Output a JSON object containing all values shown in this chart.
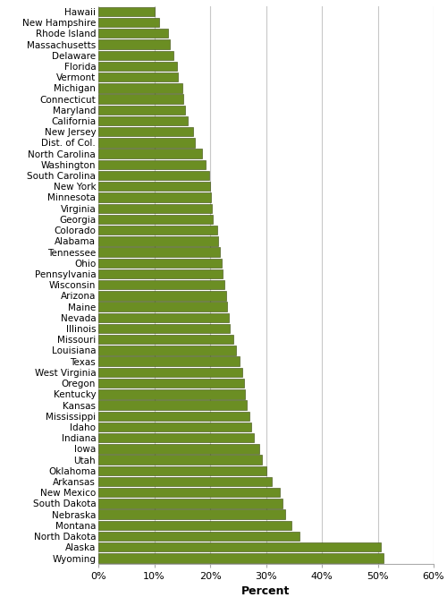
{
  "states": [
    "Hawaii",
    "New Hampshire",
    "Rhode Island",
    "Massachusetts",
    "Delaware",
    "Florida",
    "Vermont",
    "Michigan",
    "Connecticut",
    "Maryland",
    "California",
    "New Jersey",
    "Dist. of Col.",
    "North Carolina",
    "Washington",
    "South Carolina",
    "New York",
    "Minnesota",
    "Virginia",
    "Georgia",
    "Colorado",
    "Alabama",
    "Tennessee",
    "Ohio",
    "Pennsylvania",
    "Wisconsin",
    "Arizona",
    "Maine",
    "Nevada",
    "Illinois",
    "Missouri",
    "Louisiana",
    "Texas",
    "West Virginia",
    "Oregon",
    "Kentucky",
    "Kansas",
    "Mississippi",
    "Idaho",
    "Indiana",
    "Iowa",
    "Utah",
    "Oklahoma",
    "Arkansas",
    "New Mexico",
    "South Dakota",
    "Nebraska",
    "Montana",
    "North Dakota",
    "Alaska",
    "Wyoming"
  ],
  "values": [
    10.0,
    10.8,
    12.5,
    12.8,
    13.5,
    14.0,
    14.3,
    15.0,
    15.2,
    15.5,
    16.0,
    17.0,
    17.2,
    18.5,
    19.2,
    19.8,
    20.0,
    20.2,
    20.3,
    20.5,
    21.2,
    21.5,
    21.8,
    22.0,
    22.3,
    22.5,
    22.8,
    23.0,
    23.3,
    23.5,
    24.2,
    24.7,
    25.2,
    25.8,
    26.0,
    26.2,
    26.5,
    27.0,
    27.3,
    27.8,
    28.8,
    29.2,
    30.0,
    31.0,
    32.5,
    33.0,
    33.5,
    34.5,
    36.0,
    50.5,
    51.0
  ],
  "bar_color": "#6b8e23",
  "bar_edgecolor": "#3a4a10",
  "background_color": "#ffffff",
  "grid_color": "#c8c8c8",
  "xlabel": "Percent",
  "xlim": [
    0,
    60
  ],
  "xticks": [
    0,
    10,
    20,
    30,
    40,
    50,
    60
  ],
  "label_fontsize": 7.5,
  "xlabel_fontsize": 9,
  "tick_fontsize": 8
}
